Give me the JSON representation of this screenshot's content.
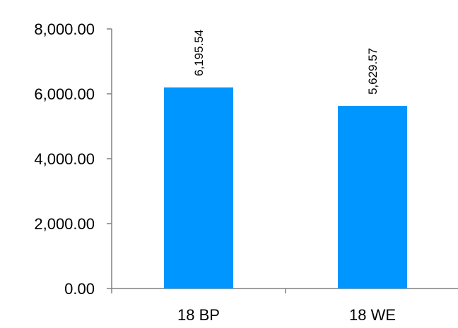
{
  "chart_data": {
    "type": "bar",
    "categories": [
      "18 BP",
      "18 WE"
    ],
    "values": [
      6195.54,
      5629.57
    ],
    "data_labels": [
      "6,195.54",
      "5,629.57"
    ],
    "yticks": [
      0,
      2000,
      4000,
      6000,
      8000
    ],
    "ytick_labels": [
      "0.00",
      "2,000.00",
      "4,000.00",
      "6,000.00",
      "8,000.00"
    ],
    "ylim": [
      0,
      8000
    ],
    "title": "",
    "xlabel": "",
    "ylabel": "",
    "grid": false,
    "legend": "none",
    "bar_color": "#0096FF",
    "axis_color": "#808080"
  }
}
